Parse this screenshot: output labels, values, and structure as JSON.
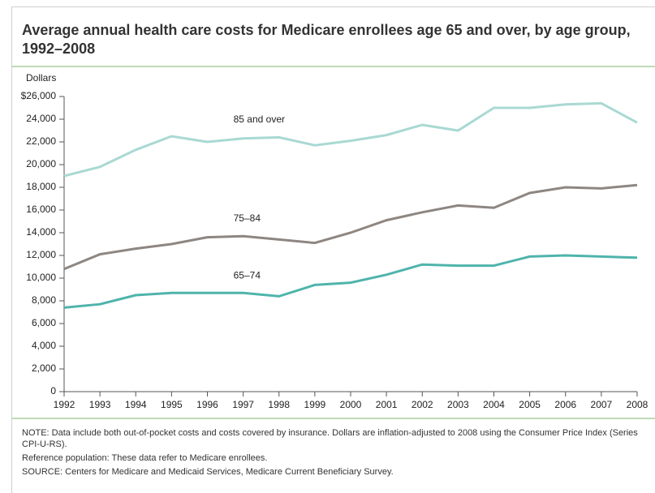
{
  "chart_data": {
    "type": "line",
    "title": "Average annual health care costs for Medicare enrollees age 65 and over, by age group, 1992–2008",
    "y_label": "Dollars",
    "x": [
      1992,
      1993,
      1994,
      1995,
      1996,
      1997,
      1998,
      1999,
      2000,
      2001,
      2002,
      2003,
      2004,
      2005,
      2006,
      2007,
      2008
    ],
    "xlim": [
      1992,
      2008
    ],
    "xticks": [
      1992,
      1993,
      1994,
      1995,
      1996,
      1997,
      1998,
      1999,
      2000,
      2001,
      2002,
      2003,
      2004,
      2005,
      2006,
      2007,
      2008
    ],
    "ylim": [
      0,
      26000
    ],
    "yticks": [
      0,
      {
        "value": 2000,
        "label": "2,000"
      },
      {
        "value": 4000,
        "label": "4,000"
      },
      {
        "value": 6000,
        "label": "6,000"
      },
      {
        "value": 8000,
        "label": "8,000"
      },
      {
        "value": 10000,
        "label": "10,000"
      },
      {
        "value": 12000,
        "label": "12,000"
      },
      {
        "value": 14000,
        "label": "14,000"
      },
      {
        "value": 16000,
        "label": "16,000"
      },
      {
        "value": 18000,
        "label": "18,000"
      },
      {
        "value": 20000,
        "label": "20,000"
      },
      {
        "value": 22000,
        "label": "22,000"
      },
      {
        "value": 24000,
        "label": "24,000"
      },
      {
        "value": 26000,
        "label": "$26,000"
      }
    ],
    "series": [
      {
        "name": "85 and over",
        "color": "#a9d9d3",
        "values": [
          19000,
          19800,
          21300,
          22500,
          22000,
          22300,
          22400,
          21700,
          22100,
          22600,
          23500,
          23000,
          25000,
          25000,
          25300,
          25400,
          23700
        ]
      },
      {
        "name": "75–84",
        "color": "#8e8681",
        "values": [
          10800,
          12100,
          12600,
          13000,
          13600,
          13700,
          13400,
          13100,
          14000,
          15100,
          15800,
          16400,
          16200,
          17500,
          18000,
          17900,
          18200
        ]
      },
      {
        "name": "65–74",
        "color": "#4fb4ac",
        "values": [
          7400,
          7700,
          8500,
          8700,
          8700,
          8700,
          8400,
          9400,
          9600,
          10300,
          11200,
          11100,
          11100,
          11900,
          12000,
          11900,
          11800
        ]
      }
    ],
    "notes": [
      "NOTE: Data include both out-of-pocket costs and costs covered by insurance. Dollars are inflation-adjusted to 2008 using the Consumer Price Index (Series CPI-U-RS).",
      "Reference population: These data refer to Medicare enrollees.",
      "SOURCE: Centers for Medicare and Medicaid Services, Medicare Current Beneficiary Survey."
    ]
  }
}
